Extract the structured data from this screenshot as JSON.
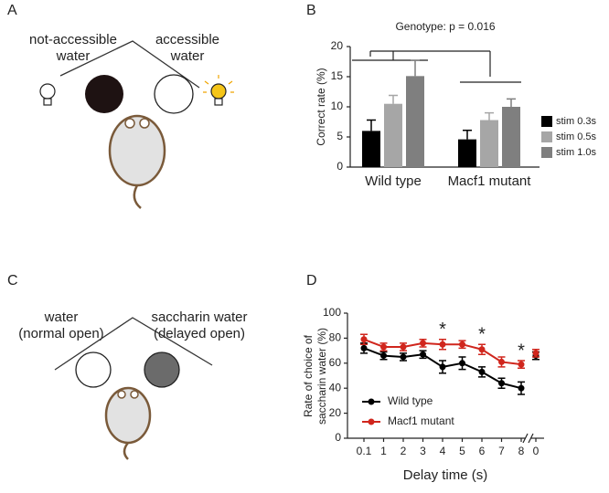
{
  "panel_a": {
    "letter": "A",
    "left_label": [
      "not-accessible",
      "water"
    ],
    "right_label": [
      "accessible",
      "water"
    ]
  },
  "panel_c": {
    "letter": "C",
    "left_label": [
      "water",
      "(normal open)"
    ],
    "right_label": [
      "saccharin water",
      "(delayed open)"
    ]
  },
  "chart_data": [
    {
      "type": "bar",
      "panel_label": "B",
      "annotation": "Genotype: p = 0.016",
      "y_label": "Correct rate (%)",
      "categories": [
        "Wild type",
        "Macf1 mutant"
      ],
      "series": [
        {
          "name": "stim 0.3s",
          "color": "#000000",
          "values": [
            6,
            4.6
          ],
          "errors": [
            1.8,
            1.5
          ]
        },
        {
          "name": "stim 0.5s",
          "color": "#a6a6a6",
          "values": [
            10.5,
            7.8
          ],
          "errors": [
            1.4,
            1.2
          ]
        },
        {
          "name": "stim 1.0s",
          "color": "#7f7f7f",
          "values": [
            15.1,
            10
          ],
          "errors": [
            2.6,
            1.3
          ]
        }
      ],
      "ylim": [
        0,
        20
      ],
      "yticks": [
        0,
        5,
        10,
        15,
        20
      ],
      "legend": "right"
    },
    {
      "type": "line",
      "panel_label": "D",
      "y_label": [
        "Rate of choice of",
        "saccharin water (%)"
      ],
      "x_label": "Delay time (s)",
      "categories": [
        "0.1",
        "1",
        "2",
        "3",
        "4",
        "5",
        "6",
        "7",
        "8",
        "0"
      ],
      "series": [
        {
          "name": "Wild type",
          "color": "#000000",
          "values": [
            72,
            66,
            65,
            67,
            57,
            60,
            53,
            44,
            40,
            66
          ],
          "errors": [
            4,
            3,
            3,
            3,
            5,
            5,
            4,
            4,
            5,
            3
          ]
        },
        {
          "name": "Macf1 mutant",
          "color": "#d0261d",
          "values": [
            79,
            73,
            73,
            76,
            75,
            75,
            71,
            61,
            59,
            68
          ],
          "errors": [
            4,
            3,
            3,
            3,
            4,
            3,
            4,
            4,
            3,
            3
          ]
        }
      ],
      "annotations": [
        {
          "text": "*",
          "x": "4"
        },
        {
          "text": "*",
          "x": "6"
        },
        {
          "text": "*",
          "x": "8"
        }
      ],
      "ylim": [
        0,
        100
      ],
      "yticks": [
        0,
        20,
        40,
        60,
        80,
        100
      ],
      "legend": "lower left"
    }
  ]
}
